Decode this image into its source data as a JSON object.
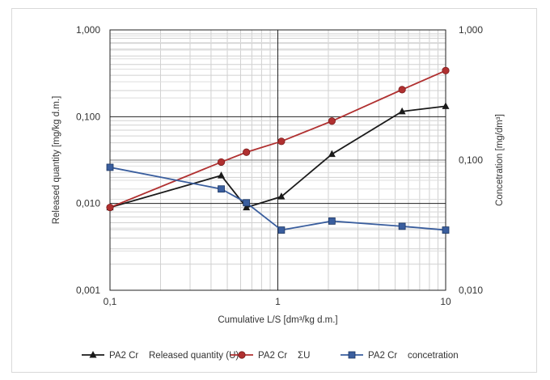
{
  "chart_data": {
    "type": "line",
    "xlabel": "Cumulative L/S [dm³/kg d.m.]",
    "ylabel_left": "Released quantity [mg/kg d.m.]",
    "ylabel_right": "Concetration [mg/dm³]",
    "x_scale": "log",
    "xlim": [
      0.1,
      10
    ],
    "ylim_left": [
      0.001,
      1
    ],
    "ylim_right": [
      0.01,
      1
    ],
    "x_ticks": [
      "0,1",
      "1",
      "10"
    ],
    "y_ticks_left": [
      "0,001",
      "0,010",
      "0,100",
      "1,000"
    ],
    "y_ticks_right": [
      "0,010",
      "0,100",
      "1,000"
    ],
    "grid": true,
    "legend_position": "bottom",
    "series": [
      {
        "name": "PA2 Cr    Released quantity (U)",
        "axis": "left",
        "color": "#1a1a1a",
        "marker": "triangle",
        "x": [
          0.1,
          0.46,
          0.65,
          1.05,
          2.1,
          5.5,
          10
        ],
        "y": [
          0.009,
          0.021,
          0.009,
          0.012,
          0.037,
          0.115,
          0.132
        ]
      },
      {
        "name": "PA2 Cr    ΣU",
        "axis": "left",
        "color": "#b03030",
        "marker": "circle",
        "x": [
          0.1,
          0.46,
          0.65,
          1.05,
          2.1,
          5.5,
          10
        ],
        "y": [
          0.009,
          0.03,
          0.039,
          0.052,
          0.089,
          0.205,
          0.34
        ]
      },
      {
        "name": "PA2 Cr    concetration",
        "axis": "right",
        "color": "#3a5e9e",
        "marker": "square",
        "x": [
          0.1,
          0.46,
          0.65,
          1.05,
          2.1,
          5.5,
          10
        ],
        "y": [
          0.088,
          0.06,
          0.047,
          0.029,
          0.034,
          0.031,
          0.029
        ]
      }
    ]
  }
}
